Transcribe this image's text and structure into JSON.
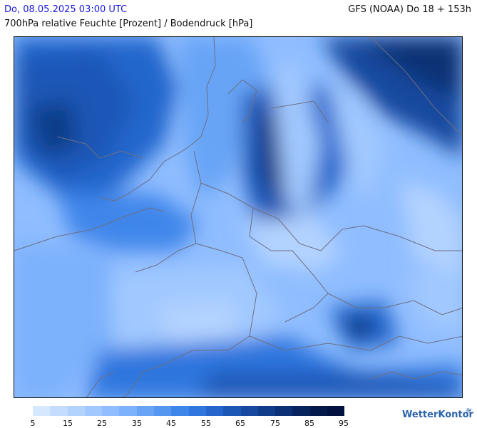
{
  "header": {
    "datetime": "Do, 08.05.2025 03:00 UTC",
    "parameter": "700hPa relative Feuchte [Prozent] / Bodendruck [hPa]",
    "model": "GFS (NOAA) Do 18 + 153h"
  },
  "legend": {
    "colors": [
      "#d6e8ff",
      "#c4ddff",
      "#b3d3ff",
      "#a2c9ff",
      "#8fbdff",
      "#7cb1fc",
      "#68a4f6",
      "#5597f0",
      "#3f86ea",
      "#2f76de",
      "#2466cc",
      "#1c57b6",
      "#16499f",
      "#103c89",
      "#0b3074",
      "#07245f",
      "#041a4d",
      "#021240"
    ],
    "labels": [
      "5",
      "15",
      "25",
      "35",
      "45",
      "55",
      "65",
      "75",
      "85",
      "95"
    ]
  },
  "brand": {
    "name": "WetterKontor"
  },
  "icons": {
    "brand_mark": "wave-icon"
  }
}
